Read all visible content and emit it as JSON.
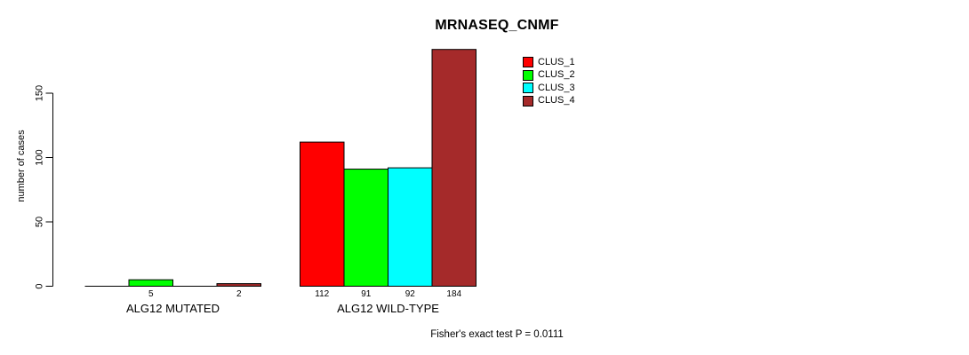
{
  "title": "MRNASEQ_CNMF",
  "y_axis_label": "number of cases",
  "annotation": "Fisher's exact test P = 0.0111",
  "legend": {
    "items": [
      {
        "label": "CLUS_1",
        "color": "#FF0000"
      },
      {
        "label": "CLUS_2",
        "color": "#00FF00"
      },
      {
        "label": "CLUS_3",
        "color": "#00FFFF"
      },
      {
        "label": "CLUS_4",
        "color": "#A52A2A"
      }
    ]
  },
  "chart_data": {
    "type": "bar",
    "title": "MRNASEQ_CNMF",
    "xlabel": "",
    "ylabel": "number of cases",
    "ylim": [
      0,
      184
    ],
    "yticks": [
      0,
      50,
      100,
      150
    ],
    "grid": false,
    "legend_position": "top-right",
    "annotation": "Fisher's exact test P = 0.0111",
    "series": [
      {
        "name": "CLUS_1",
        "color": "#FF0000"
      },
      {
        "name": "CLUS_2",
        "color": "#00FF00"
      },
      {
        "name": "CLUS_3",
        "color": "#00FFFF"
      },
      {
        "name": "CLUS_4",
        "color": "#A52A2A"
      }
    ],
    "groups": [
      {
        "label": "ALG12 MUTATED",
        "values": [
          0,
          5,
          0,
          2
        ],
        "bar_labels": [
          "",
          "5",
          "",
          "2"
        ]
      },
      {
        "label": "ALG12 WILD-TYPE",
        "values": [
          112,
          91,
          92,
          184
        ],
        "bar_labels": [
          "112",
          "91",
          "92",
          "184"
        ]
      }
    ]
  }
}
